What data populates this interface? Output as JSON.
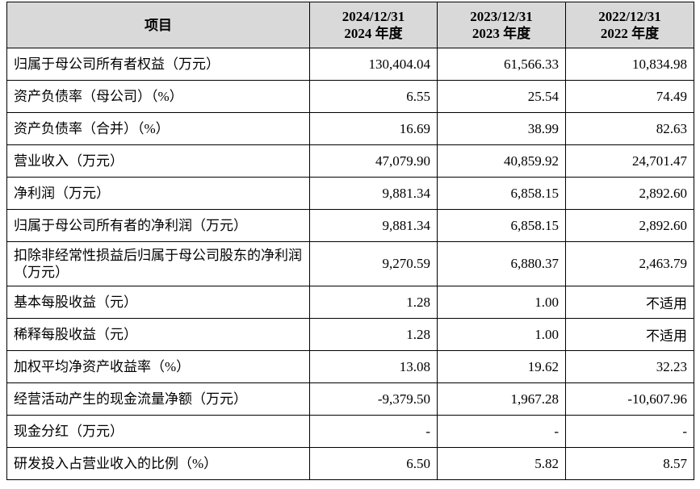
{
  "table": {
    "header": [
      [
        "项目"
      ],
      [
        "2024/12/31",
        "2024 年度"
      ],
      [
        "2023/12/31",
        "2023 年度"
      ],
      [
        "2022/12/31",
        "2022 年度"
      ]
    ],
    "rows": [
      [
        "归属于母公司所有者权益（万元）",
        "130,404.04",
        "61,566.33",
        "10,834.98"
      ],
      [
        "资产负债率（母公司）（%）",
        "6.55",
        "25.54",
        "74.49"
      ],
      [
        "资产负债率（合并）（%）",
        "16.69",
        "38.99",
        "82.63"
      ],
      [
        "营业收入（万元）",
        "47,079.90",
        "40,859.92",
        "24,701.47"
      ],
      [
        "净利润（万元）",
        "9,881.34",
        "6,858.15",
        "2,892.60"
      ],
      [
        "归属于母公司所有者的净利润（万元）",
        "9,881.34",
        "6,858.15",
        "2,892.60"
      ],
      [
        "扣除非经常性损益后归属于母公司股东的净利润（万元）",
        "9,270.59",
        "6,880.37",
        "2,463.79"
      ],
      [
        "基本每股收益（元）",
        "1.28",
        "1.00",
        "不适用"
      ],
      [
        "稀释每股收益（元）",
        "1.28",
        "1.00",
        "不适用"
      ],
      [
        "加权平均净资产收益率（%）",
        "13.08",
        "19.62",
        "32.23"
      ],
      [
        "经营活动产生的现金流量净额（万元）",
        "-9,379.50",
        "1,967.28",
        "-10,607.96"
      ],
      [
        "现金分红（万元）",
        "-",
        "-",
        "-"
      ],
      [
        "研发投入占营业收入的比例（%）",
        "6.50",
        "5.82",
        "8.57"
      ]
    ]
  }
}
